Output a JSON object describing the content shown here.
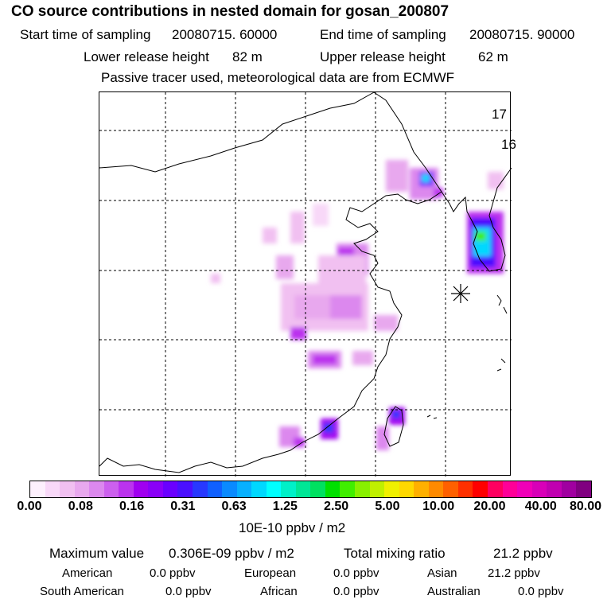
{
  "header": {
    "title": "CO  source contributions in nested domain for gosan_200807",
    "start_label": "Start time of sampling",
    "start_value": "20080715. 60000",
    "end_label": "End time of sampling",
    "end_value": "20080715. 90000",
    "lower_label": "Lower release height",
    "lower_value": "82 m",
    "upper_label": "Upper release height",
    "upper_value": "62 m",
    "note": "Passive tracer used, meteorological data are from ECMWF"
  },
  "map": {
    "corner_label_1": "17",
    "corner_label_2": "16",
    "receptor_marker": "asterisk-receptor"
  },
  "colorbar": {
    "swatches": [
      "#fdf0fd",
      "#f8d8f8",
      "#f1c0f1",
      "#e8a8ee",
      "#dc88ee",
      "#cc60ee",
      "#bb33ee",
      "#a000f0",
      "#8a00f8",
      "#6a00ff",
      "#4a10ff",
      "#2838ff",
      "#1060ff",
      "#0a8aff",
      "#08b0ff",
      "#00d8ff",
      "#00ffff",
      "#00f0c8",
      "#00e696",
      "#00e060",
      "#00e000",
      "#40ee00",
      "#88f000",
      "#c0f000",
      "#f0f000",
      "#ffd800",
      "#ffb000",
      "#ff8a00",
      "#ff6000",
      "#ff3000",
      "#ff0000",
      "#ff0060",
      "#ff0098",
      "#f000b8",
      "#d800b8",
      "#c000b0",
      "#a000a0",
      "#800080"
    ],
    "ticks": [
      "0.00",
      "0.08",
      "0.16",
      "0.31",
      "0.63",
      "1.25",
      "2.50",
      "5.00",
      "10.00",
      "20.00",
      "40.00",
      "80.00"
    ],
    "unit": "10E-10 ppbv / m2"
  },
  "stats": {
    "max_label": "Maximum value",
    "max_value": "0.306E-09 ppbv / m2",
    "total_label": "Total mixing ratio",
    "total_value": "21.2 ppbv",
    "regions": [
      {
        "name": "American",
        "value": "0.0 ppbv"
      },
      {
        "name": "European",
        "value": "0.0 ppbv"
      },
      {
        "name": "Asian",
        "value": "21.2 ppbv"
      },
      {
        "name": "South American",
        "value": "0.0 ppbv"
      },
      {
        "name": "African",
        "value": "0.0 ppbv"
      },
      {
        "name": "Australian",
        "value": "0.0 ppbv"
      }
    ]
  }
}
